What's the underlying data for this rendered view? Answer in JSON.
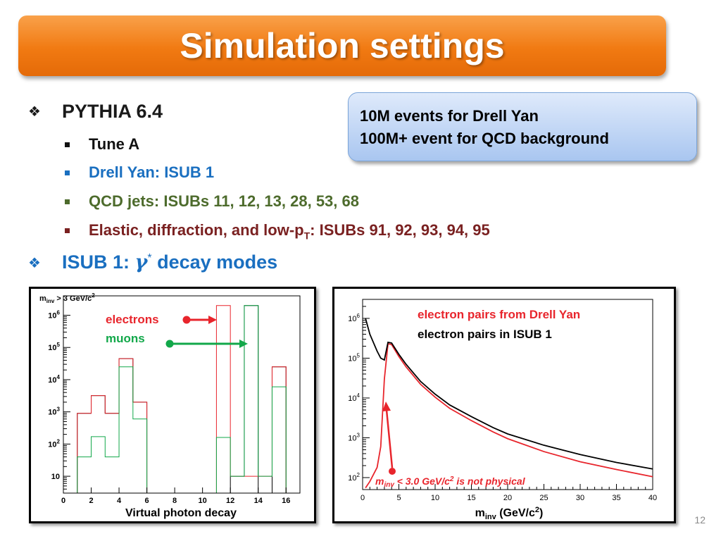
{
  "slide": {
    "title": "Simulation settings",
    "page_number": "12"
  },
  "bullets": {
    "pythia": "PYTHIA 6.4",
    "tune": "Tune A",
    "drell_yan": "Drell Yan: ISUB 1",
    "qcd": "QCD jets: ISUBs 11, 12, 13, 28, 53, 68",
    "elastic_pre": "Elastic, diffraction, and low-p",
    "elastic_sub": "T",
    "elastic_post": ": ISUBs 91, 92, 93, 94, 95",
    "isub_pre": "ISUB 1: ",
    "isub_gamma": "γ",
    "isub_star": "*",
    "isub_post": " decay modes"
  },
  "callout": {
    "line1": "10M events for Drell Yan",
    "line2": "100M+ event for QCD background"
  },
  "colors": {
    "blue_text": "#1a6fc0",
    "green_text": "#4d6b2c",
    "brown_text": "#7a2121",
    "red": "#e8252c",
    "green": "#12a84a"
  },
  "left_chart_text": {
    "cut_m": "m",
    "cut_sub": "inv",
    "cut_mid": " > 3 GeV/c",
    "cut_sup": "2",
    "xlabel": "Virtual photon decay",
    "electrons": "electrons",
    "muons": "muons",
    "ytick_10": "10",
    "ytick_base": "10"
  },
  "right_chart_text": {
    "xlabel_m": "m",
    "xlabel_sub": "inv",
    "xlabel_mid": " (GeV/c",
    "xlabel_sup": "2",
    "xlabel_end": ")",
    "legend_dy": "electron pairs from Drell Yan",
    "legend_isub": "electron pairs in ISUB 1",
    "note_m": "m",
    "note_sub": "inv",
    "note_mid": " < 3.0 GeV/c",
    "note_sup": "2",
    "note_end": " is not physical",
    "ytick_base": "10"
  },
  "chart_data": [
    {
      "type": "histogram",
      "title": "",
      "xlabel": "Virtual photon decay",
      "log_y": true,
      "xlim": [
        0,
        17
      ],
      "ylim": [
        3,
        4000000
      ],
      "x_ticks": [
        0,
        2,
        4,
        6,
        8,
        10,
        12,
        14,
        16
      ],
      "y_tick_exponents": [
        1,
        2,
        3,
        4,
        5,
        6
      ],
      "bin_edges": [
        1,
        2,
        3,
        4,
        5,
        6,
        7,
        8,
        9,
        10,
        11,
        12,
        13,
        14,
        15,
        16,
        17
      ],
      "series": [
        {
          "name": "",
          "color": "#000000",
          "values": [
            900,
            3200,
            900,
            45000,
            2000,
            0,
            0,
            0,
            0,
            0,
            0,
            10,
            2000000,
            0,
            25000,
            0
          ]
        },
        {
          "name": "electrons",
          "color": "#e8252c",
          "values": [
            900,
            3200,
            900,
            45000,
            2000,
            0,
            0,
            0,
            0,
            0,
            2000000,
            10,
            10,
            10,
            25000,
            0
          ]
        },
        {
          "name": "muons",
          "color": "#12a84a",
          "values": [
            40,
            170,
            40,
            25000,
            600,
            0,
            0,
            0,
            0,
            0,
            160,
            10,
            2000000,
            10,
            6000,
            0
          ]
        }
      ]
    },
    {
      "type": "line",
      "title": "",
      "xlabel": "m_inv (GeV/c^2)",
      "log_y": true,
      "xlim": [
        0,
        40
      ],
      "ylim": [
        50,
        3000000
      ],
      "x_ticks": [
        0,
        5,
        10,
        15,
        20,
        25,
        30,
        35,
        40
      ],
      "y_tick_exponents": [
        2,
        3,
        4,
        5,
        6
      ],
      "series": [
        {
          "name": "electron pairs from Drell Yan",
          "color": "#e8252c",
          "x": [
            0.4,
            1,
            2,
            2.5,
            3,
            3.5,
            4,
            5,
            6,
            8,
            10,
            12,
            15,
            18,
            20,
            25,
            30,
            35,
            40
          ],
          "y": [
            55,
            80,
            180,
            600,
            30000,
            230000,
            220000,
            110000,
            60000,
            22000,
            10500,
            5500,
            2700,
            1400,
            950,
            450,
            250,
            160,
            105
          ]
        },
        {
          "name": "electron pairs in ISUB 1",
          "color": "#000000",
          "x": [
            0.4,
            1,
            2,
            2.5,
            3,
            3.5,
            4,
            5,
            6,
            8,
            10,
            12,
            15,
            18,
            20,
            25,
            30,
            35,
            40
          ],
          "y": [
            1000000,
            400000,
            150000,
            100000,
            90000,
            250000,
            240000,
            125000,
            70000,
            26000,
            12500,
            6700,
            3400,
            1800,
            1250,
            650,
            380,
            240,
            165
          ]
        }
      ]
    }
  ]
}
